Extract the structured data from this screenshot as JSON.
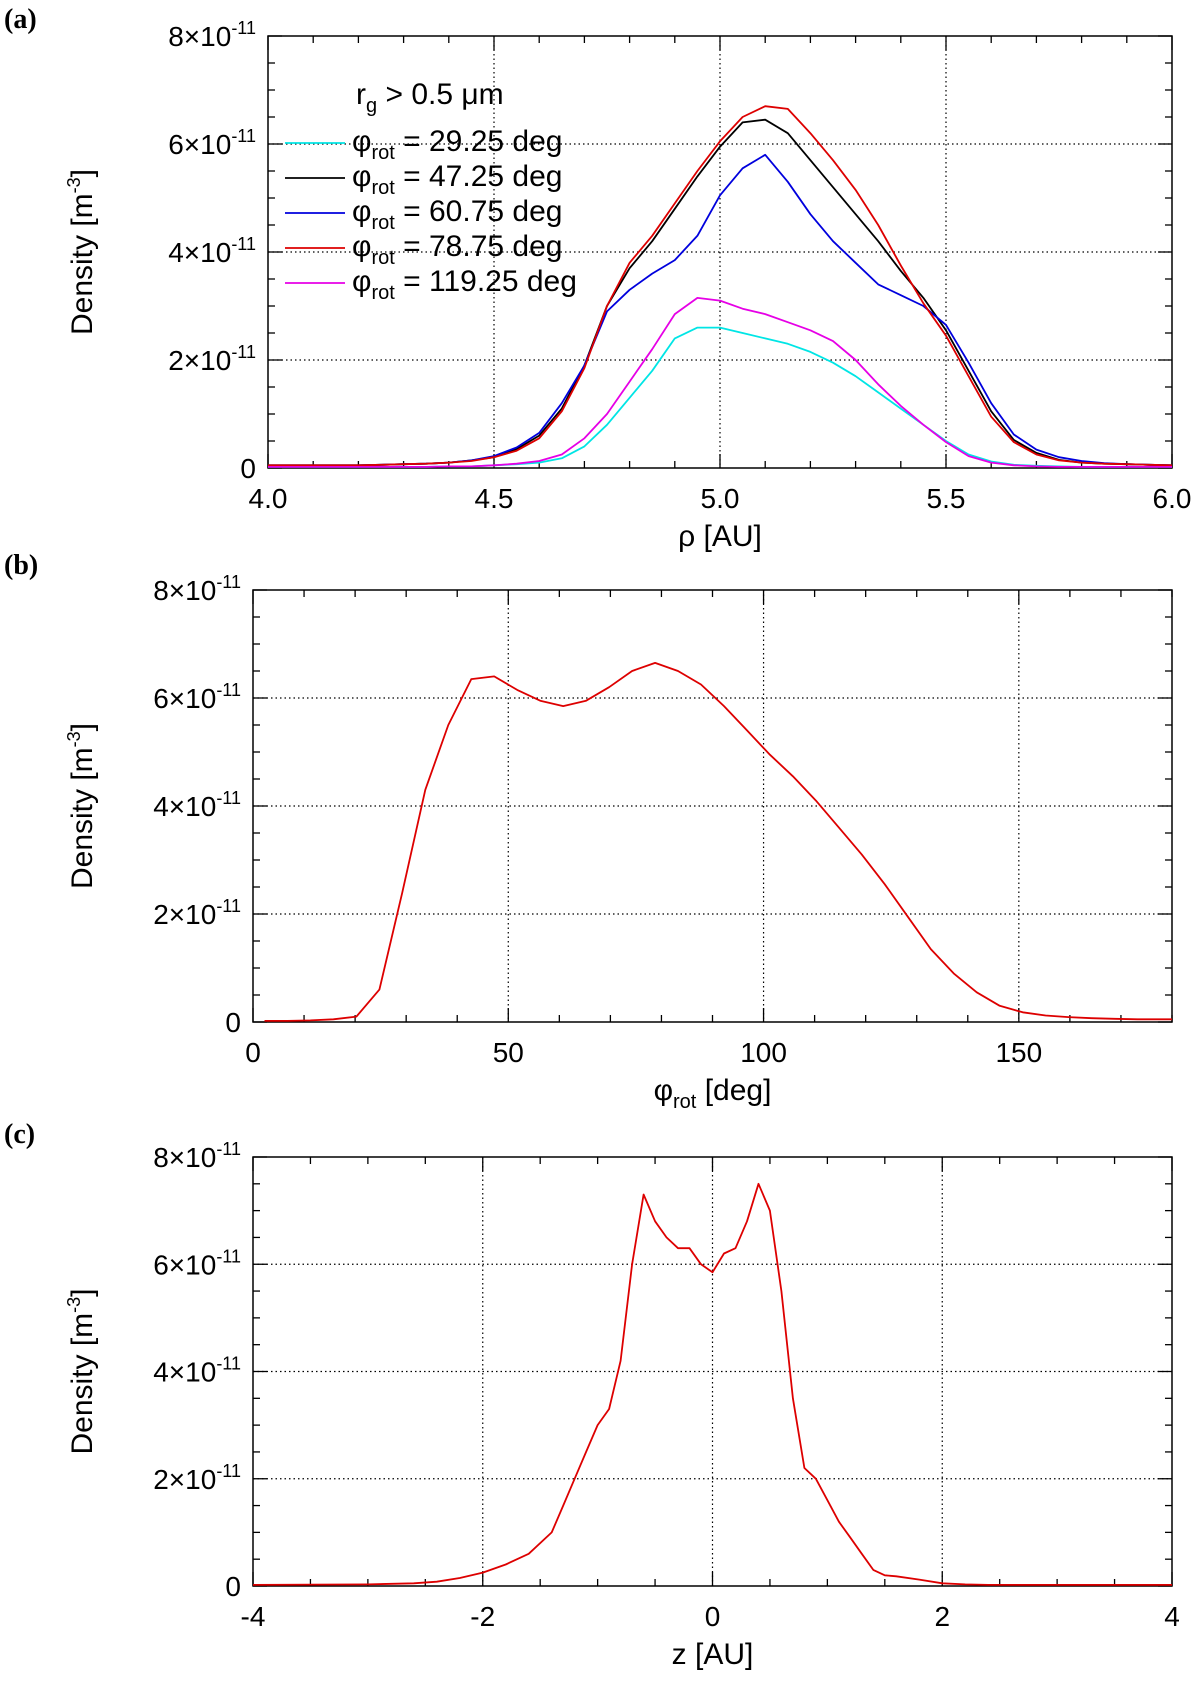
{
  "chart_data": [
    {
      "type": "line",
      "panel_label": "(a)",
      "xlabel": "ρ [AU]",
      "ylabel": "Density [m-3]",
      "ylabel_main": "Density [m",
      "ylabel_sup": "-3",
      "ylabel_close": "]",
      "xlim": [
        4.0,
        6.0
      ],
      "ylim": [
        0,
        8e-11
      ],
      "grid": true,
      "x_ticks": [
        {
          "value": 4.0,
          "label": "4.0"
        },
        {
          "value": 4.5,
          "label": "4.5"
        },
        {
          "value": 5.0,
          "label": "5.0"
        },
        {
          "value": 5.5,
          "label": "5.5"
        },
        {
          "value": 6.0,
          "label": "6.0"
        }
      ],
      "y_ticks": [
        {
          "value": 0,
          "label": "0",
          "sup": ""
        },
        {
          "value": 2e-11,
          "label": "2×10",
          "sup": "-11"
        },
        {
          "value": 4e-11,
          "label": "4×10",
          "sup": "-11"
        },
        {
          "value": 6e-11,
          "label": "6×10",
          "sup": "-11"
        },
        {
          "value": 8e-11,
          "label": "8×10",
          "sup": "-11"
        }
      ],
      "legend_title": "rg > 0.5 μm",
      "legend_title_main": "r",
      "legend_title_sub": "g",
      "legend_title_rest": " > 0.5 μm",
      "x": [
        4.0,
        4.05,
        4.1,
        4.15,
        4.2,
        4.25,
        4.3,
        4.35,
        4.4,
        4.45,
        4.5,
        4.55,
        4.6,
        4.65,
        4.7,
        4.75,
        4.8,
        4.85,
        4.9,
        4.95,
        5.0,
        5.05,
        5.1,
        5.15,
        5.2,
        5.25,
        5.3,
        5.35,
        5.4,
        5.45,
        5.5,
        5.55,
        5.6,
        5.65,
        5.7,
        5.75,
        5.8,
        5.85,
        5.9,
        5.95,
        6.0
      ],
      "series": [
        {
          "name": "φrot = 29.25 deg",
          "legend_main": "φ",
          "legend_sub": "rot",
          "legend_rest": " = 29.25 deg",
          "color": "#00e5e5",
          "values": [
            0.02,
            0.02,
            0.02,
            0.02,
            0.02,
            0.02,
            0.02,
            0.02,
            0.03,
            0.03,
            0.05,
            0.07,
            0.1,
            0.18,
            0.4,
            0.8,
            1.3,
            1.8,
            2.4,
            2.6,
            2.6,
            2.5,
            2.4,
            2.3,
            2.15,
            1.95,
            1.7,
            1.4,
            1.1,
            0.8,
            0.5,
            0.25,
            0.12,
            0.06,
            0.04,
            0.03,
            0.02,
            0.02,
            0.02,
            0.02,
            0.02
          ]
        },
        {
          "name": "φrot = 47.25 deg",
          "legend_main": "φ",
          "legend_sub": "rot",
          "legend_rest": " = 47.25 deg",
          "color": "#000000",
          "values": [
            0.05,
            0.05,
            0.05,
            0.05,
            0.05,
            0.06,
            0.07,
            0.08,
            0.1,
            0.14,
            0.2,
            0.35,
            0.6,
            1.1,
            1.9,
            3.0,
            3.7,
            4.2,
            4.8,
            5.4,
            5.95,
            6.4,
            6.45,
            6.2,
            5.7,
            5.2,
            4.7,
            4.2,
            3.65,
            3.15,
            2.55,
            1.8,
            1.05,
            0.52,
            0.28,
            0.15,
            0.1,
            0.08,
            0.07,
            0.06,
            0.05
          ]
        },
        {
          "name": "φrot = 60.75 deg",
          "legend_main": "φ",
          "legend_sub": "rot",
          "legend_rest": " = 60.75 deg",
          "color": "#0000dd",
          "values": [
            0.05,
            0.05,
            0.05,
            0.05,
            0.05,
            0.06,
            0.07,
            0.08,
            0.1,
            0.14,
            0.22,
            0.38,
            0.65,
            1.2,
            1.9,
            2.9,
            3.3,
            3.6,
            3.85,
            4.3,
            5.05,
            5.55,
            5.8,
            5.3,
            4.7,
            4.2,
            3.8,
            3.4,
            3.2,
            3.0,
            2.65,
            1.95,
            1.2,
            0.62,
            0.34,
            0.2,
            0.13,
            0.09,
            0.07,
            0.06,
            0.05
          ]
        },
        {
          "name": "φrot = 78.75 deg",
          "legend_main": "φ",
          "legend_sub": "rot",
          "legend_rest": " = 78.75 deg",
          "color": "#dd0000",
          "values": [
            0.05,
            0.05,
            0.05,
            0.05,
            0.05,
            0.06,
            0.07,
            0.08,
            0.1,
            0.13,
            0.2,
            0.32,
            0.55,
            1.05,
            1.85,
            3.0,
            3.8,
            4.3,
            4.9,
            5.5,
            6.05,
            6.5,
            6.7,
            6.65,
            6.2,
            5.7,
            5.15,
            4.5,
            3.75,
            3.05,
            2.45,
            1.7,
            0.95,
            0.48,
            0.25,
            0.14,
            0.1,
            0.08,
            0.07,
            0.06,
            0.05
          ]
        },
        {
          "name": "φrot = 119.25 deg",
          "legend_main": "φ",
          "legend_sub": "rot",
          "legend_rest": " = 119.25 deg",
          "color": "#e600e6",
          "values": [
            0.02,
            0.02,
            0.02,
            0.02,
            0.02,
            0.02,
            0.02,
            0.02,
            0.03,
            0.03,
            0.05,
            0.08,
            0.13,
            0.25,
            0.55,
            1.0,
            1.6,
            2.2,
            2.85,
            3.15,
            3.1,
            2.95,
            2.85,
            2.7,
            2.55,
            2.35,
            2.0,
            1.55,
            1.15,
            0.8,
            0.48,
            0.22,
            0.1,
            0.05,
            0.03,
            0.02,
            0.02,
            0.02,
            0.02,
            0.02,
            0.02
          ]
        }
      ]
    },
    {
      "type": "line",
      "panel_label": "(b)",
      "xlabel": "φrot [deg]",
      "xlabel_main": "φ",
      "xlabel_sub": "rot",
      "xlabel_rest": " [deg]",
      "ylabel": "Density [m-3]",
      "ylabel_main": "Density [m",
      "ylabel_sup": "-3",
      "ylabel_close": "]",
      "xlim": [
        0,
        180
      ],
      "ylim": [
        0,
        8e-11
      ],
      "grid": true,
      "x_ticks": [
        {
          "value": 0,
          "label": "0"
        },
        {
          "value": 50,
          "label": "50"
        },
        {
          "value": 100,
          "label": "100"
        },
        {
          "value": 150,
          "label": "150"
        }
      ],
      "y_ticks": [
        {
          "value": 0,
          "label": "0",
          "sup": ""
        },
        {
          "value": 2e-11,
          "label": "2×10",
          "sup": "-11"
        },
        {
          "value": 4e-11,
          "label": "4×10",
          "sup": "-11"
        },
        {
          "value": 6e-11,
          "label": "6×10",
          "sup": "-11"
        },
        {
          "value": 8e-11,
          "label": "8×10",
          "sup": "-11"
        }
      ],
      "x": [
        2.25,
        6.75,
        11.25,
        15.75,
        20.25,
        24.75,
        29.25,
        33.75,
        38.25,
        42.75,
        47.25,
        51.75,
        56.25,
        60.75,
        65.25,
        69.75,
        74.25,
        78.75,
        83.25,
        87.75,
        92.25,
        96.75,
        101.25,
        105.75,
        110.25,
        114.75,
        119.25,
        123.75,
        128.25,
        132.75,
        137.25,
        141.75,
        146.25,
        150.75,
        155.25,
        159.75,
        164.25,
        168.75,
        173.25,
        177.75,
        180
      ],
      "series": [
        {
          "name": "density",
          "color": "#dd0000",
          "values": [
            0.02,
            0.02,
            0.03,
            0.05,
            0.1,
            0.6,
            2.4,
            4.3,
            5.5,
            6.35,
            6.4,
            6.15,
            5.95,
            5.85,
            5.95,
            6.2,
            6.5,
            6.65,
            6.5,
            6.25,
            5.85,
            5.4,
            4.95,
            4.55,
            4.1,
            3.6,
            3.1,
            2.55,
            1.95,
            1.35,
            0.9,
            0.55,
            0.3,
            0.18,
            0.12,
            0.09,
            0.07,
            0.06,
            0.05,
            0.05,
            0.05
          ]
        }
      ]
    },
    {
      "type": "line",
      "panel_label": "(c)",
      "xlabel": "z [AU]",
      "ylabel": "Density [m-3]",
      "ylabel_main": "Density [m",
      "ylabel_sup": "-3",
      "ylabel_close": "]",
      "xlim": [
        -4,
        4
      ],
      "ylim": [
        0,
        8e-11
      ],
      "grid": true,
      "x_ticks": [
        {
          "value": -4,
          "label": "-4"
        },
        {
          "value": -2,
          "label": "-2"
        },
        {
          "value": 0,
          "label": "0"
        },
        {
          "value": 2,
          "label": "2"
        },
        {
          "value": 4,
          "label": "4"
        }
      ],
      "y_ticks": [
        {
          "value": 0,
          "label": "0",
          "sup": ""
        },
        {
          "value": 2e-11,
          "label": "2×10",
          "sup": "-11"
        },
        {
          "value": 4e-11,
          "label": "4×10",
          "sup": "-11"
        },
        {
          "value": 6e-11,
          "label": "6×10",
          "sup": "-11"
        },
        {
          "value": 8e-11,
          "label": "8×10",
          "sup": "-11"
        }
      ],
      "x": [
        -4.0,
        -3.0,
        -2.6,
        -2.4,
        -2.2,
        -2.0,
        -1.8,
        -1.6,
        -1.4,
        -1.3,
        -1.2,
        -1.1,
        -1.0,
        -0.9,
        -0.8,
        -0.7,
        -0.6,
        -0.5,
        -0.4,
        -0.3,
        -0.2,
        -0.1,
        0.0,
        0.1,
        0.2,
        0.3,
        0.4,
        0.5,
        0.6,
        0.7,
        0.8,
        0.9,
        1.0,
        1.1,
        1.2,
        1.3,
        1.4,
        1.5,
        1.6,
        1.8,
        2.0,
        2.2,
        2.4,
        2.6,
        3.0,
        4.0
      ],
      "series": [
        {
          "name": "density",
          "color": "#dd0000",
          "values": [
            0.02,
            0.03,
            0.05,
            0.08,
            0.15,
            0.25,
            0.4,
            0.6,
            1.0,
            1.5,
            2.0,
            2.5,
            3.0,
            3.3,
            4.2,
            6.0,
            7.3,
            6.8,
            6.5,
            6.3,
            6.3,
            6.0,
            5.85,
            6.2,
            6.3,
            6.8,
            7.5,
            7.0,
            5.5,
            3.5,
            2.2,
            2.0,
            1.6,
            1.2,
            0.9,
            0.6,
            0.3,
            0.2,
            0.18,
            0.12,
            0.05,
            0.03,
            0.02,
            0.02,
            0.02,
            0.02
          ]
        }
      ]
    }
  ]
}
